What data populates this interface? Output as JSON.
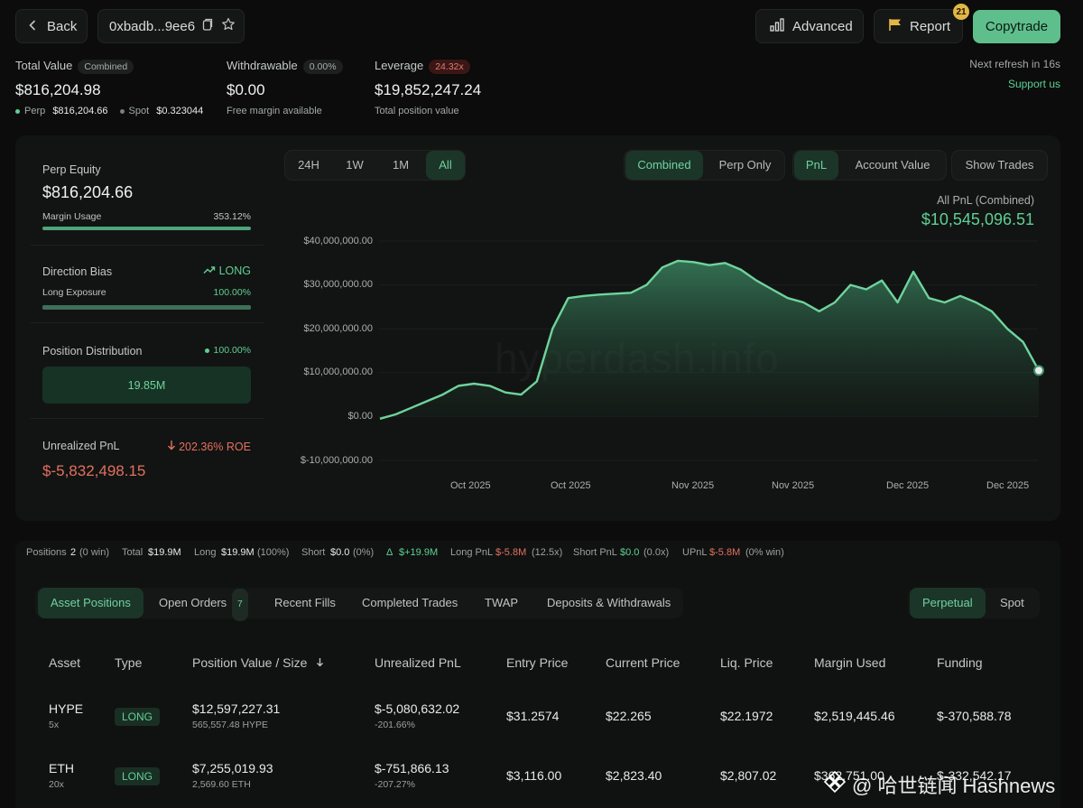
{
  "header": {
    "back_label": "Back",
    "address": "0xbadb...9ee6",
    "advanced_label": "Advanced",
    "report_label": "Report",
    "report_badge": "21",
    "copytrade_label": "Copytrade",
    "refresh_text": "Next refresh in 16s",
    "support_label": "Support us"
  },
  "summary": {
    "total_value_label": "Total Value",
    "total_value_tag": "Combined",
    "total_value": "$816,204.98",
    "perp_label": "Perp",
    "perp_value": "$816,204.66",
    "spot_label": "Spot",
    "spot_value": "$0.323044",
    "withdrawable_label": "Withdrawable",
    "withdrawable_tag": "0.00%",
    "withdrawable_value": "$0.00",
    "withdrawable_sub": "Free margin available",
    "leverage_label": "Leverage",
    "leverage_tag": "24.32x",
    "leverage_value": "$19,852,247.24",
    "leverage_sub": "Total position value"
  },
  "left_panel": {
    "perp_equity_label": "Perp Equity",
    "perp_equity_value": "$816,204.66",
    "margin_usage_label": "Margin Usage",
    "margin_usage_value": "353.12%",
    "margin_usage_fill": 1.0,
    "direction_bias_label": "Direction Bias",
    "direction_bias_value": "LONG",
    "long_exposure_label": "Long Exposure",
    "long_exposure_value": "100.00%",
    "long_exposure_fill": 1.0,
    "position_dist_label": "Position Distribution",
    "position_dist_pct": "100.00%",
    "position_dist_value": "19.85M",
    "unrealized_pnl_label": "Unrealized PnL",
    "roe_value": "202.36% ROE",
    "unrealized_pnl_value": "$-5,832,498.15"
  },
  "chart_controls": {
    "ranges": [
      "24H",
      "1W",
      "1M",
      "All"
    ],
    "active_range": "All",
    "mode_combined": "Combined",
    "mode_perp": "Perp Only",
    "metric_pnl": "PnL",
    "metric_account": "Account Value",
    "show_trades": "Show Trades"
  },
  "chart_data": {
    "type": "area",
    "title": "All PnL (Combined)",
    "headline_value": "$10,545,096.51",
    "watermark": "hyperdash.info",
    "y_ticks": [
      "$40,000,000.00",
      "$30,000,000.00",
      "$20,000,000.00",
      "$10,000,000.00",
      "$0.00",
      "$-10,000,000.00"
    ],
    "ylim": [
      -10000000,
      40000000
    ],
    "x_ticks": [
      "Oct 2025",
      "Oct 2025",
      "Nov 2025",
      "Nov 2025",
      "Dec 2025",
      "Dec 2025"
    ],
    "xlabel": "",
    "ylabel": "",
    "series": [
      {
        "values": [
          -500000,
          500000,
          2000000,
          3500000,
          5000000,
          7000000,
          7500000,
          7000000,
          5500000,
          5000000,
          8000000,
          20000000,
          27000000,
          27500000,
          27800000,
          28000000,
          28200000,
          30000000,
          34000000,
          35500000,
          35200000,
          34500000,
          35000000,
          33500000,
          31000000,
          29000000,
          27000000,
          26000000,
          24000000,
          26000000,
          30000000,
          29000000,
          31000000,
          26000000,
          33000000,
          27000000,
          26000000,
          27500000,
          26000000,
          24000000,
          20000000,
          17000000,
          10500000
        ]
      }
    ]
  },
  "stats_bar": {
    "positions_label": "Positions",
    "positions_value": "2",
    "positions_win": "(0 win)",
    "total_label": "Total",
    "total_value": "$19.9M",
    "long_label": "Long",
    "long_value": "$19.9M",
    "long_pct": "(100%)",
    "short_label": "Short",
    "short_value": "$0.0",
    "short_pct": "(0%)",
    "delta_label": "Δ",
    "delta_value": "$+19.9M",
    "long_pnl_label": "Long PnL",
    "long_pnl_value": "$-5.8M",
    "long_pnl_lev": "(12.5x)",
    "short_pnl_label": "Short PnL",
    "short_pnl_value": "$0.0",
    "short_pnl_lev": "(0.0x)",
    "upnl_label": "UPnL",
    "upnl_value": "$-5.8M",
    "upnl_win": "(0% win)"
  },
  "tabs": {
    "asset_positions": "Asset Positions",
    "open_orders": "Open Orders",
    "open_orders_count": "7",
    "recent_fills": "Recent Fills",
    "completed_trades": "Completed Trades",
    "twap": "TWAP",
    "deposits": "Deposits & Withdrawals",
    "perpetual": "Perpetual",
    "spot": "Spot"
  },
  "table": {
    "headers": [
      "Asset",
      "Type",
      "Position Value / Size",
      "Unrealized PnL",
      "Entry Price",
      "Current Price",
      "Liq. Price",
      "Margin Used",
      "Funding"
    ],
    "rows": [
      {
        "asset": "HYPE",
        "leverage": "5x",
        "type": "LONG",
        "value": "$12,597,227.31",
        "size": "565,557.48 HYPE",
        "pnl": "$-5,080,632.02",
        "pnl_pct": "-201.66%",
        "entry": "$31.2574",
        "current": "$22.265",
        "liq": "$22.1972",
        "margin": "$2,519,445.46",
        "funding": "$-370,588.78"
      },
      {
        "asset": "ETH",
        "leverage": "20x",
        "type": "LONG",
        "value": "$7,255,019.93",
        "size": "2,569.60 ETH",
        "pnl": "$-751,866.13",
        "pnl_pct": "-207.27%",
        "entry": "$3,116.00",
        "current": "$2,823.40",
        "liq": "$2,807.02",
        "margin": "$362,751.00",
        "funding": "$-332,542.17"
      }
    ]
  },
  "footer_watermark": "@ 哈世链闻 Hashnews",
  "colors": {
    "accent": "#5fbf8c",
    "negative": "#e3705f",
    "bg": "#0b0c0b"
  }
}
